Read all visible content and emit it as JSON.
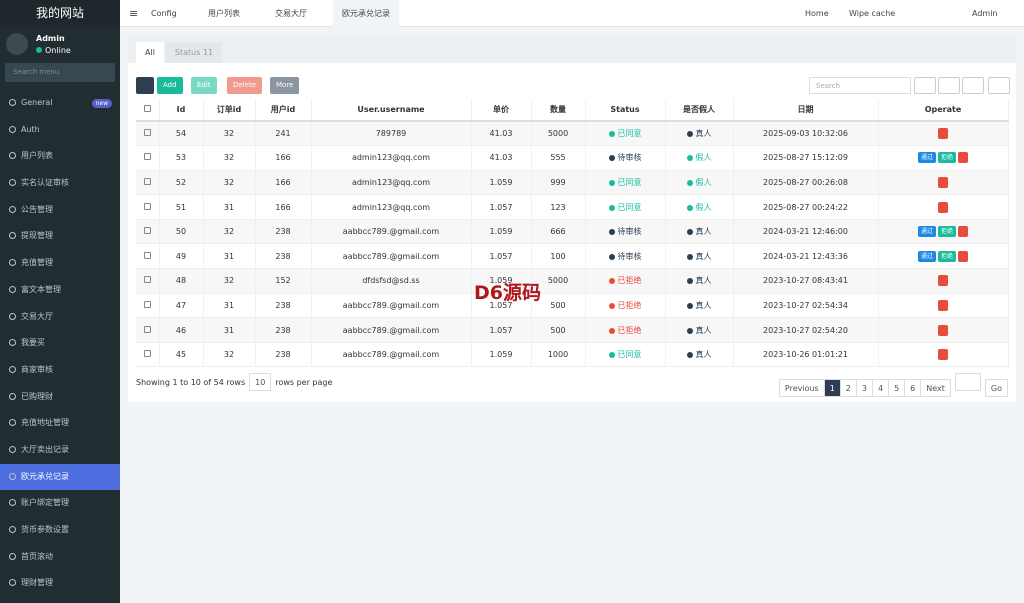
{
  "sidebar": {
    "title": "我的网站",
    "user": "Admin",
    "status": "Online",
    "search_placeholder": "Search menu",
    "menu": [
      {
        "label": "General",
        "badge": "new"
      },
      {
        "label": "Auth"
      },
      {
        "label": "用户列表"
      },
      {
        "label": "实名认证审核"
      },
      {
        "label": "公告管理"
      },
      {
        "label": "提现管理"
      },
      {
        "label": "充值管理"
      },
      {
        "label": "富文本管理"
      },
      {
        "label": "交易大厅"
      },
      {
        "label": "我要买"
      },
      {
        "label": "商家审核"
      },
      {
        "label": "已购理财"
      },
      {
        "label": "充值地址管理"
      },
      {
        "label": "大厅卖出记录"
      },
      {
        "label": "欧元承兑记录",
        "active": true
      },
      {
        "label": "账户绑定管理"
      },
      {
        "label": "货币参数设置"
      },
      {
        "label": "首页滚动"
      },
      {
        "label": "理财管理"
      }
    ]
  },
  "topbar": {
    "tabs": [
      "Config",
      "用户列表",
      "交易大厅",
      "欧元承兑记录"
    ],
    "right": [
      "Home",
      "Wipe cache",
      "Admin"
    ]
  },
  "panel": {
    "tabs": [
      "All",
      "Status 11"
    ],
    "toolbar": [
      "Add",
      "Edit",
      "Delete",
      "More"
    ],
    "search_placeholder": "Search",
    "columns": [
      "Id",
      "订单id",
      "用户id",
      "User.username",
      "单价",
      "数量",
      "Status",
      "是否假人",
      "日期",
      "Operate"
    ],
    "rows": [
      {
        "cells": [
          "54",
          "32",
          "241",
          "789789",
          "41.03",
          "5000",
          "已同意",
          "真人",
          "2025-09-03 10:32:06"
        ],
        "status_color": "#18bc9c",
        "fake_color": "#2c3e50",
        "pending": false
      },
      {
        "cells": [
          "53",
          "32",
          "166",
          "admin123@qq.com",
          "41.03",
          "555",
          "待审核",
          "假人",
          "2025-08-27 15:12:09"
        ],
        "status_color": "#2c3e50",
        "fake_color": "#18bc9c",
        "pending": true
      },
      {
        "cells": [
          "52",
          "32",
          "166",
          "admin123@qq.com",
          "1.059",
          "999",
          "已同意",
          "假人",
          "2025-08-27 00:26:08"
        ],
        "status_color": "#18bc9c",
        "fake_color": "#18bc9c",
        "pending": false
      },
      {
        "cells": [
          "51",
          "31",
          "166",
          "admin123@qq.com",
          "1.057",
          "123",
          "已同意",
          "假人",
          "2025-08-27 00:24:22"
        ],
        "status_color": "#18bc9c",
        "fake_color": "#18bc9c",
        "pending": false
      },
      {
        "cells": [
          "50",
          "32",
          "238",
          "aabbcc789.@gmail.com",
          "1.059",
          "666",
          "待审核",
          "真人",
          "2024-03-21 12:46:00"
        ],
        "status_color": "#2c3e50",
        "fake_color": "#2c3e50",
        "pending": true
      },
      {
        "cells": [
          "49",
          "31",
          "238",
          "aabbcc789.@gmail.com",
          "1.057",
          "100",
          "待审核",
          "真人",
          "2024-03-21 12:43:36"
        ],
        "status_color": "#2c3e50",
        "fake_color": "#2c3e50",
        "pending": true
      },
      {
        "cells": [
          "48",
          "32",
          "152",
          "dfdsfsd@sd.ss",
          "1.059",
          "5000",
          "已拒绝",
          "真人",
          "2023-10-27 08:43:41"
        ],
        "status_color": "#e74c3c",
        "fake_color": "#2c3e50",
        "pending": false
      },
      {
        "cells": [
          "47",
          "31",
          "238",
          "aabbcc789.@gmail.com",
          "1.057",
          "500",
          "已拒绝",
          "真人",
          "2023-10-27 02:54:34"
        ],
        "status_color": "#e74c3c",
        "fake_color": "#2c3e50",
        "pending": false
      },
      {
        "cells": [
          "46",
          "31",
          "238",
          "aabbcc789.@gmail.com",
          "1.057",
          "500",
          "已拒绝",
          "真人",
          "2023-10-27 02:54:20"
        ],
        "status_color": "#e74c3c",
        "fake_color": "#2c3e50",
        "pending": false
      },
      {
        "cells": [
          "45",
          "32",
          "238",
          "aabbcc789.@gmail.com",
          "1.059",
          "1000",
          "已同意",
          "真人",
          "2023-10-26 01:01:21"
        ],
        "status_color": "#18bc9c",
        "fake_color": "#2c3e50",
        "pending": false
      }
    ],
    "approve": "通过",
    "reject": "拒绝",
    "footer": {
      "summary": "Showing 1 to 10 of 54 rows",
      "page_size": "10",
      "page_size_suffix": "rows per page",
      "pages": [
        "Previous",
        "1",
        "2",
        "3",
        "4",
        "5",
        "6",
        "Next"
      ],
      "go": "Go"
    },
    "watermark": "D6源码"
  }
}
